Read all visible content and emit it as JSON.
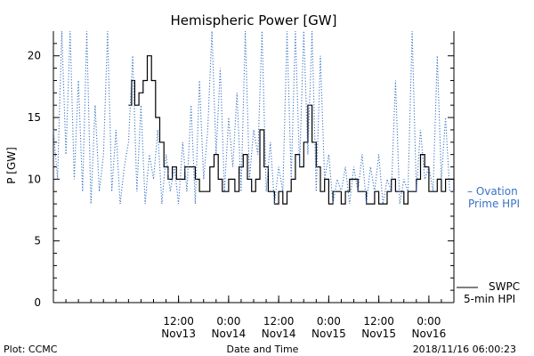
{
  "chart_data": {
    "type": "line",
    "title": "Hemispheric Power [GW]",
    "ylabel": "P [GW]",
    "xlabel": "Date and Time",
    "ylim": [
      0,
      22
    ],
    "xlim": [
      "2018-11-12 06:00",
      "2018-11-16 06:00"
    ],
    "yticks": [
      0,
      5,
      10,
      15,
      20
    ],
    "xticks": [
      {
        "label_time": "12:00",
        "label_date": "Nov13",
        "x": "2018-11-13 12:00"
      },
      {
        "label_time": "0:00",
        "label_date": "Nov14",
        "x": "2018-11-14 00:00"
      },
      {
        "label_time": "12:00",
        "label_date": "Nov14",
        "x": "2018-11-14 12:00"
      },
      {
        "label_time": "0:00",
        "label_date": "Nov15",
        "x": "2018-11-15 00:00"
      },
      {
        "label_time": "12:00",
        "label_date": "Nov15",
        "x": "2018-11-15 12:00"
      },
      {
        "label_time": "0:00",
        "label_date": "Nov16",
        "x": "2018-11-16 00:00"
      }
    ],
    "grid": false,
    "series": [
      {
        "name": "SWPC 5-min HPI",
        "style": "solid",
        "color": "#000000",
        "legend_lines": [
          "SWPC",
          "5-min HPI"
        ],
        "points": [
          [
            "2018-11-13 00:00",
            16
          ],
          [
            "2018-11-13 00:45",
            18
          ],
          [
            "2018-11-13 01:30",
            16
          ],
          [
            "2018-11-13 02:30",
            17
          ],
          [
            "2018-11-13 03:30",
            18
          ],
          [
            "2018-11-13 04:30",
            20
          ],
          [
            "2018-11-13 05:30",
            18
          ],
          [
            "2018-11-13 06:30",
            15
          ],
          [
            "2018-11-13 07:30",
            13
          ],
          [
            "2018-11-13 08:30",
            11
          ],
          [
            "2018-11-13 09:30",
            10
          ],
          [
            "2018-11-13 10:30",
            11
          ],
          [
            "2018-11-13 11:30",
            10
          ],
          [
            "2018-11-13 12:30",
            10
          ],
          [
            "2018-11-13 13:30",
            11
          ],
          [
            "2018-11-13 15:00",
            11
          ],
          [
            "2018-11-13 16:00",
            10
          ],
          [
            "2018-11-13 17:00",
            9
          ],
          [
            "2018-11-13 18:30",
            9
          ],
          [
            "2018-11-13 19:30",
            11
          ],
          [
            "2018-11-13 20:30",
            12
          ],
          [
            "2018-11-13 21:30",
            10
          ],
          [
            "2018-11-13 22:30",
            9
          ],
          [
            "2018-11-14 00:00",
            10
          ],
          [
            "2018-11-14 01:30",
            9
          ],
          [
            "2018-11-14 02:30",
            11
          ],
          [
            "2018-11-14 03:30",
            12
          ],
          [
            "2018-11-14 04:30",
            10
          ],
          [
            "2018-11-14 05:30",
            9
          ],
          [
            "2018-11-14 06:30",
            10
          ],
          [
            "2018-11-14 07:30",
            14
          ],
          [
            "2018-11-14 08:30",
            11
          ],
          [
            "2018-11-14 09:30",
            9
          ],
          [
            "2018-11-14 11:00",
            8
          ],
          [
            "2018-11-14 12:00",
            9
          ],
          [
            "2018-11-14 13:00",
            8
          ],
          [
            "2018-11-14 14:00",
            9
          ],
          [
            "2018-11-14 15:00",
            10
          ],
          [
            "2018-11-14 16:00",
            12
          ],
          [
            "2018-11-14 17:00",
            11
          ],
          [
            "2018-11-14 18:00",
            13
          ],
          [
            "2018-11-14 19:00",
            16
          ],
          [
            "2018-11-14 20:00",
            13
          ],
          [
            "2018-11-14 21:00",
            11
          ],
          [
            "2018-11-14 22:00",
            9
          ],
          [
            "2018-11-14 23:00",
            10
          ],
          [
            "2018-11-15 00:00",
            8
          ],
          [
            "2018-11-15 01:00",
            9
          ],
          [
            "2018-11-15 02:00",
            9
          ],
          [
            "2018-11-15 03:00",
            8
          ],
          [
            "2018-11-15 04:00",
            9
          ],
          [
            "2018-11-15 05:00",
            10
          ],
          [
            "2018-11-15 06:00",
            10
          ],
          [
            "2018-11-15 07:00",
            9
          ],
          [
            "2018-11-15 08:00",
            9
          ],
          [
            "2018-11-15 09:00",
            8
          ],
          [
            "2018-11-15 10:00",
            8
          ],
          [
            "2018-11-15 11:00",
            9
          ],
          [
            "2018-11-15 12:00",
            8
          ],
          [
            "2018-11-15 13:00",
            8
          ],
          [
            "2018-11-15 14:00",
            9
          ],
          [
            "2018-11-15 15:00",
            10
          ],
          [
            "2018-11-15 16:00",
            9
          ],
          [
            "2018-11-15 17:00",
            9
          ],
          [
            "2018-11-15 18:00",
            8
          ],
          [
            "2018-11-15 19:00",
            9
          ],
          [
            "2018-11-15 20:00",
            9
          ],
          [
            "2018-11-15 21:00",
            10
          ],
          [
            "2018-11-15 22:00",
            12
          ],
          [
            "2018-11-15 23:00",
            11
          ],
          [
            "2018-11-16 00:00",
            9
          ],
          [
            "2018-11-16 01:00",
            9
          ],
          [
            "2018-11-16 02:00",
            10
          ],
          [
            "2018-11-16 03:00",
            9
          ],
          [
            "2018-11-16 04:00",
            10
          ],
          [
            "2018-11-16 05:00",
            10
          ],
          [
            "2018-11-16 06:00",
            9
          ]
        ]
      },
      {
        "name": "Ovation Prime HPI",
        "style": "dotted",
        "color": "#3a72c4",
        "legend_lines": [
          "– Ovation",
          "Prime HPI"
        ],
        "points": [
          [
            "2018-11-12 06:00",
            14
          ],
          [
            "2018-11-12 07:00",
            10
          ],
          [
            "2018-11-12 08:00",
            22
          ],
          [
            "2018-11-12 09:00",
            12
          ],
          [
            "2018-11-12 10:00",
            22
          ],
          [
            "2018-11-12 11:00",
            10
          ],
          [
            "2018-11-12 12:00",
            18
          ],
          [
            "2018-11-12 13:00",
            9
          ],
          [
            "2018-11-12 14:00",
            22
          ],
          [
            "2018-11-12 15:00",
            8
          ],
          [
            "2018-11-12 16:00",
            16
          ],
          [
            "2018-11-12 17:00",
            9
          ],
          [
            "2018-11-12 18:00",
            12
          ],
          [
            "2018-11-12 19:00",
            22
          ],
          [
            "2018-11-12 20:00",
            9
          ],
          [
            "2018-11-12 21:00",
            14
          ],
          [
            "2018-11-12 22:00",
            8
          ],
          [
            "2018-11-12 23:00",
            11
          ],
          [
            "2018-11-13 00:00",
            13
          ],
          [
            "2018-11-13 01:00",
            20
          ],
          [
            "2018-11-13 02:00",
            9
          ],
          [
            "2018-11-13 03:00",
            16
          ],
          [
            "2018-11-13 04:00",
            8
          ],
          [
            "2018-11-13 05:00",
            12
          ],
          [
            "2018-11-13 06:00",
            10
          ],
          [
            "2018-11-13 07:00",
            14
          ],
          [
            "2018-11-13 08:00",
            8
          ],
          [
            "2018-11-13 09:00",
            12
          ],
          [
            "2018-11-13 10:00",
            9
          ],
          [
            "2018-11-13 11:00",
            11
          ],
          [
            "2018-11-13 12:00",
            8
          ],
          [
            "2018-11-13 13:00",
            13
          ],
          [
            "2018-11-13 14:00",
            9
          ],
          [
            "2018-11-13 15:00",
            16
          ],
          [
            "2018-11-13 16:00",
            8
          ],
          [
            "2018-11-13 17:00",
            18
          ],
          [
            "2018-11-13 18:00",
            10
          ],
          [
            "2018-11-13 19:00",
            14
          ],
          [
            "2018-11-13 20:00",
            22
          ],
          [
            "2018-11-13 21:00",
            12
          ],
          [
            "2018-11-13 22:00",
            19
          ],
          [
            "2018-11-13 23:00",
            9
          ],
          [
            "2018-11-14 00:00",
            15
          ],
          [
            "2018-11-14 01:00",
            11
          ],
          [
            "2018-11-14 02:00",
            17
          ],
          [
            "2018-11-14 03:00",
            9
          ],
          [
            "2018-11-14 04:00",
            22
          ],
          [
            "2018-11-14 05:00",
            10
          ],
          [
            "2018-11-14 06:00",
            14
          ],
          [
            "2018-11-14 07:00",
            12
          ],
          [
            "2018-11-14 08:00",
            22
          ],
          [
            "2018-11-14 09:00",
            9
          ],
          [
            "2018-11-14 10:00",
            13
          ],
          [
            "2018-11-14 11:00",
            8
          ],
          [
            "2018-11-14 12:00",
            11
          ],
          [
            "2018-11-14 13:00",
            9
          ],
          [
            "2018-11-14 14:00",
            22
          ],
          [
            "2018-11-14 15:00",
            10
          ],
          [
            "2018-11-14 16:00",
            22
          ],
          [
            "2018-11-14 17:00",
            11
          ],
          [
            "2018-11-14 18:00",
            22
          ],
          [
            "2018-11-14 19:00",
            12
          ],
          [
            "2018-11-14 20:00",
            22
          ],
          [
            "2018-11-14 21:00",
            9
          ],
          [
            "2018-11-14 22:00",
            20
          ],
          [
            "2018-11-14 23:00",
            10
          ],
          [
            "2018-11-15 00:00",
            12
          ],
          [
            "2018-11-15 01:00",
            8
          ],
          [
            "2018-11-15 02:00",
            10
          ],
          [
            "2018-11-15 03:00",
            9
          ],
          [
            "2018-11-15 04:00",
            11
          ],
          [
            "2018-11-15 05:00",
            8
          ],
          [
            "2018-11-15 06:00",
            11
          ],
          [
            "2018-11-15 07:00",
            9
          ],
          [
            "2018-11-15 08:00",
            12
          ],
          [
            "2018-11-15 09:00",
            8
          ],
          [
            "2018-11-15 10:00",
            11
          ],
          [
            "2018-11-15 11:00",
            9
          ],
          [
            "2018-11-15 12:00",
            12
          ],
          [
            "2018-11-15 13:00",
            8
          ],
          [
            "2018-11-15 14:00",
            10
          ],
          [
            "2018-11-15 15:00",
            9
          ],
          [
            "2018-11-15 16:00",
            18
          ],
          [
            "2018-11-15 17:00",
            8
          ],
          [
            "2018-11-15 18:00",
            10
          ],
          [
            "2018-11-15 19:00",
            9
          ],
          [
            "2018-11-15 20:00",
            22
          ],
          [
            "2018-11-15 21:00",
            9
          ],
          [
            "2018-11-15 22:00",
            14
          ],
          [
            "2018-11-15 23:00",
            10
          ],
          [
            "2018-11-16 00:00",
            11
          ],
          [
            "2018-11-16 01:00",
            9
          ],
          [
            "2018-11-16 02:00",
            20
          ],
          [
            "2018-11-16 03:00",
            10
          ],
          [
            "2018-11-16 04:00",
            15
          ],
          [
            "2018-11-16 05:00",
            9
          ],
          [
            "2018-11-16 06:00",
            9
          ]
        ]
      }
    ]
  },
  "footer": {
    "left": "Plot: CCMC",
    "center": "Date and Time",
    "right": "2018/11/16 06:00:23"
  }
}
